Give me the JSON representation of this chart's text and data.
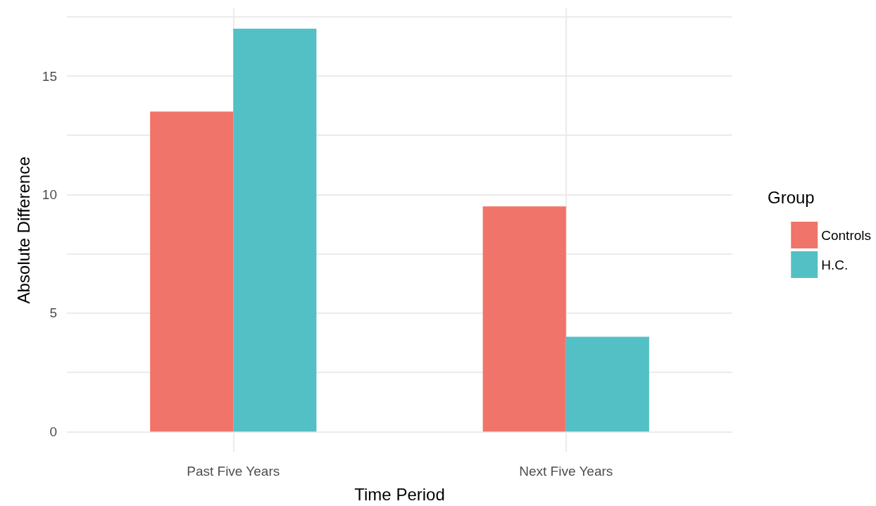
{
  "chart_data": {
    "type": "bar",
    "xlabel": "Time Period",
    "ylabel": "Absolute Difference",
    "legend_title": "Group",
    "categories": [
      "Past Five Years",
      "Next Five Years"
    ],
    "series": [
      {
        "name": "Controls",
        "color": "#f07469",
        "values": [
          13.5,
          9.5
        ]
      },
      {
        "name": "H.C.",
        "color": "#53c0c5",
        "values": [
          17,
          4
        ]
      }
    ],
    "ylim": [
      -0.85,
      17.85
    ],
    "yticks": [
      0,
      {
        "value": 2.5,
        "label": null
      },
      5,
      {
        "value": 7.5,
        "label": null
      },
      10,
      {
        "value": 12.5,
        "label": null
      },
      15,
      {
        "value": 17.5,
        "label": null
      }
    ],
    "grid": true,
    "legend": "right"
  }
}
